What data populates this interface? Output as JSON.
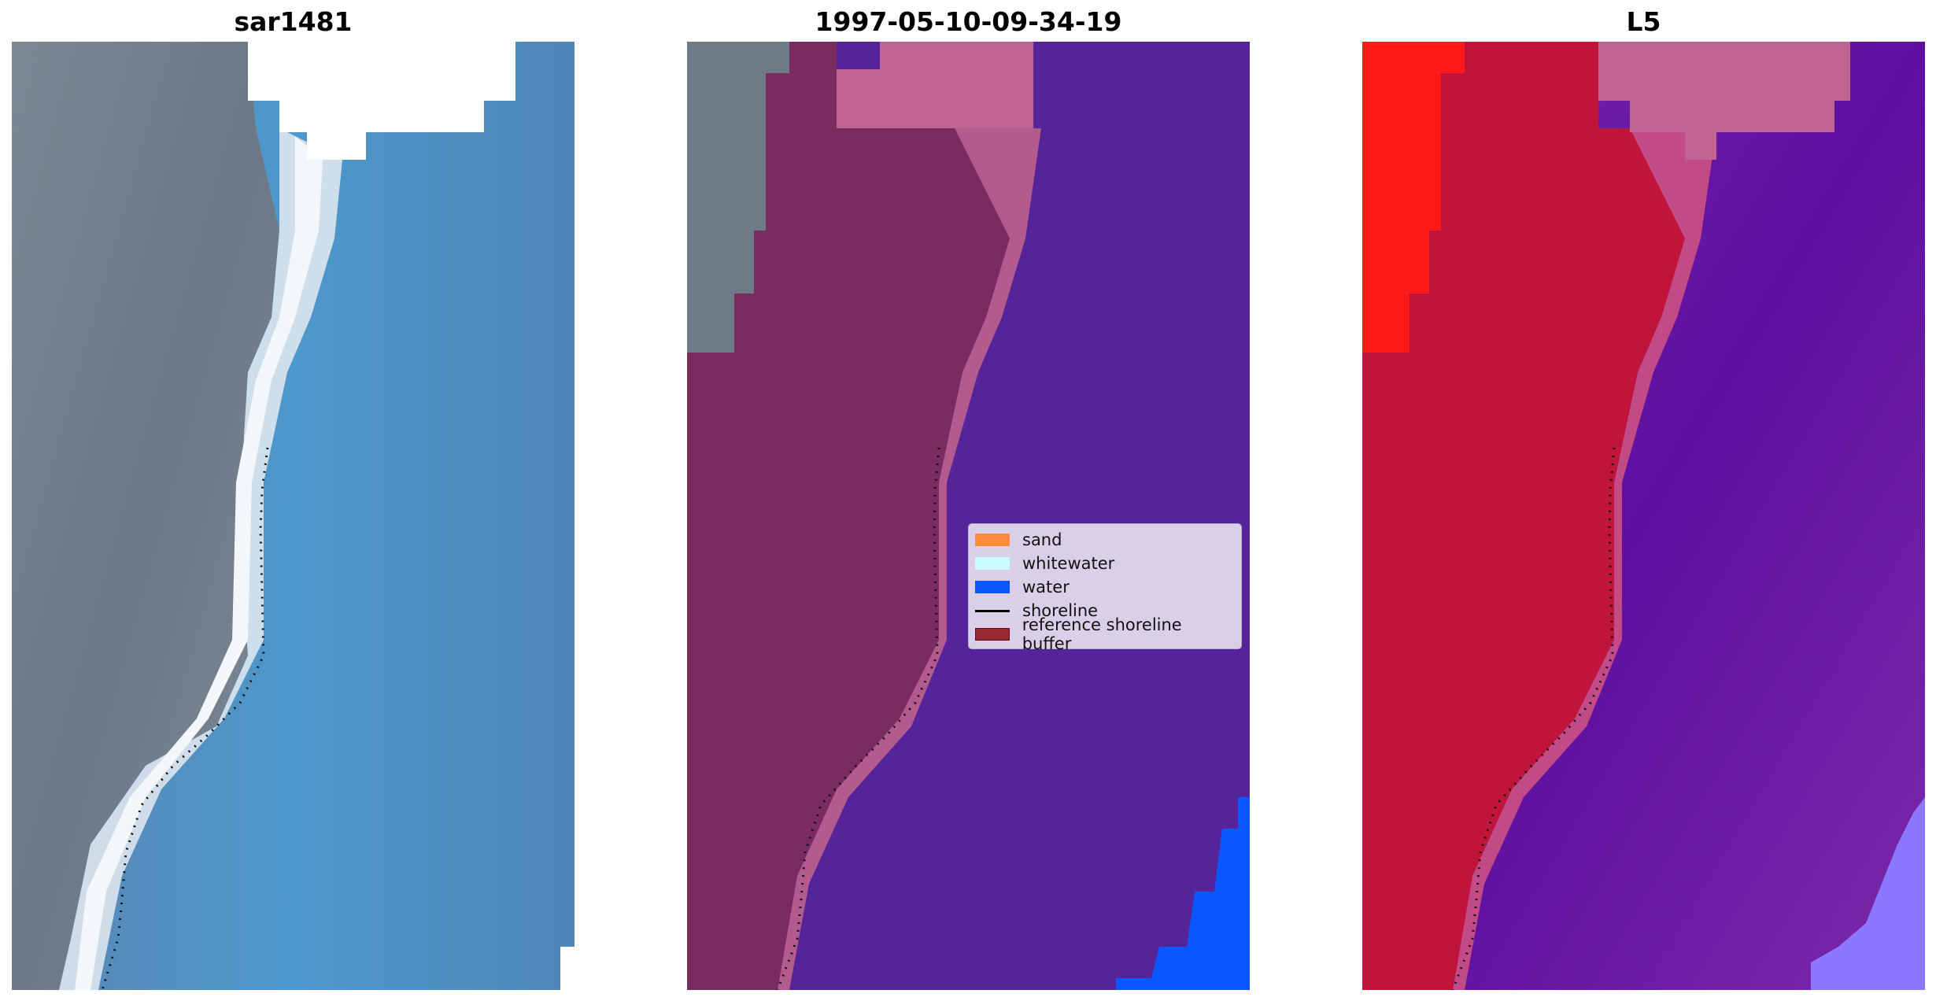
{
  "titles": {
    "left": "sar1481",
    "middle": "1997-05-10-09-34-19",
    "right": "L5"
  },
  "legend": {
    "items": [
      {
        "label": "sand",
        "color": "#ff8c3a",
        "kind": "patch"
      },
      {
        "label": "whitewater",
        "color": "#ccfbff",
        "kind": "patch"
      },
      {
        "label": "water",
        "color": "#0a57ff",
        "kind": "patch"
      },
      {
        "label": "shoreline",
        "color": "#000000",
        "kind": "line"
      },
      {
        "label": "reference shoreline buffer",
        "color": "#9a2a32",
        "kind": "patch"
      }
    ]
  },
  "colors": {
    "rgb_land": "#6e7a86",
    "rgb_water": "#4f8fc2",
    "rgb_whitewater": "#e8eef2",
    "class_buffer": "#7a2c60",
    "class_buffer_light": "#b35a8f",
    "class_water_overlay": "#55239a",
    "class_water": "#0a57ff",
    "nodata_pink": "#c06592",
    "index_land": "#c0143a",
    "index_red": "#ff1a1a",
    "index_water": "#6e1aa0",
    "index_lavender": "#8c78ff"
  }
}
